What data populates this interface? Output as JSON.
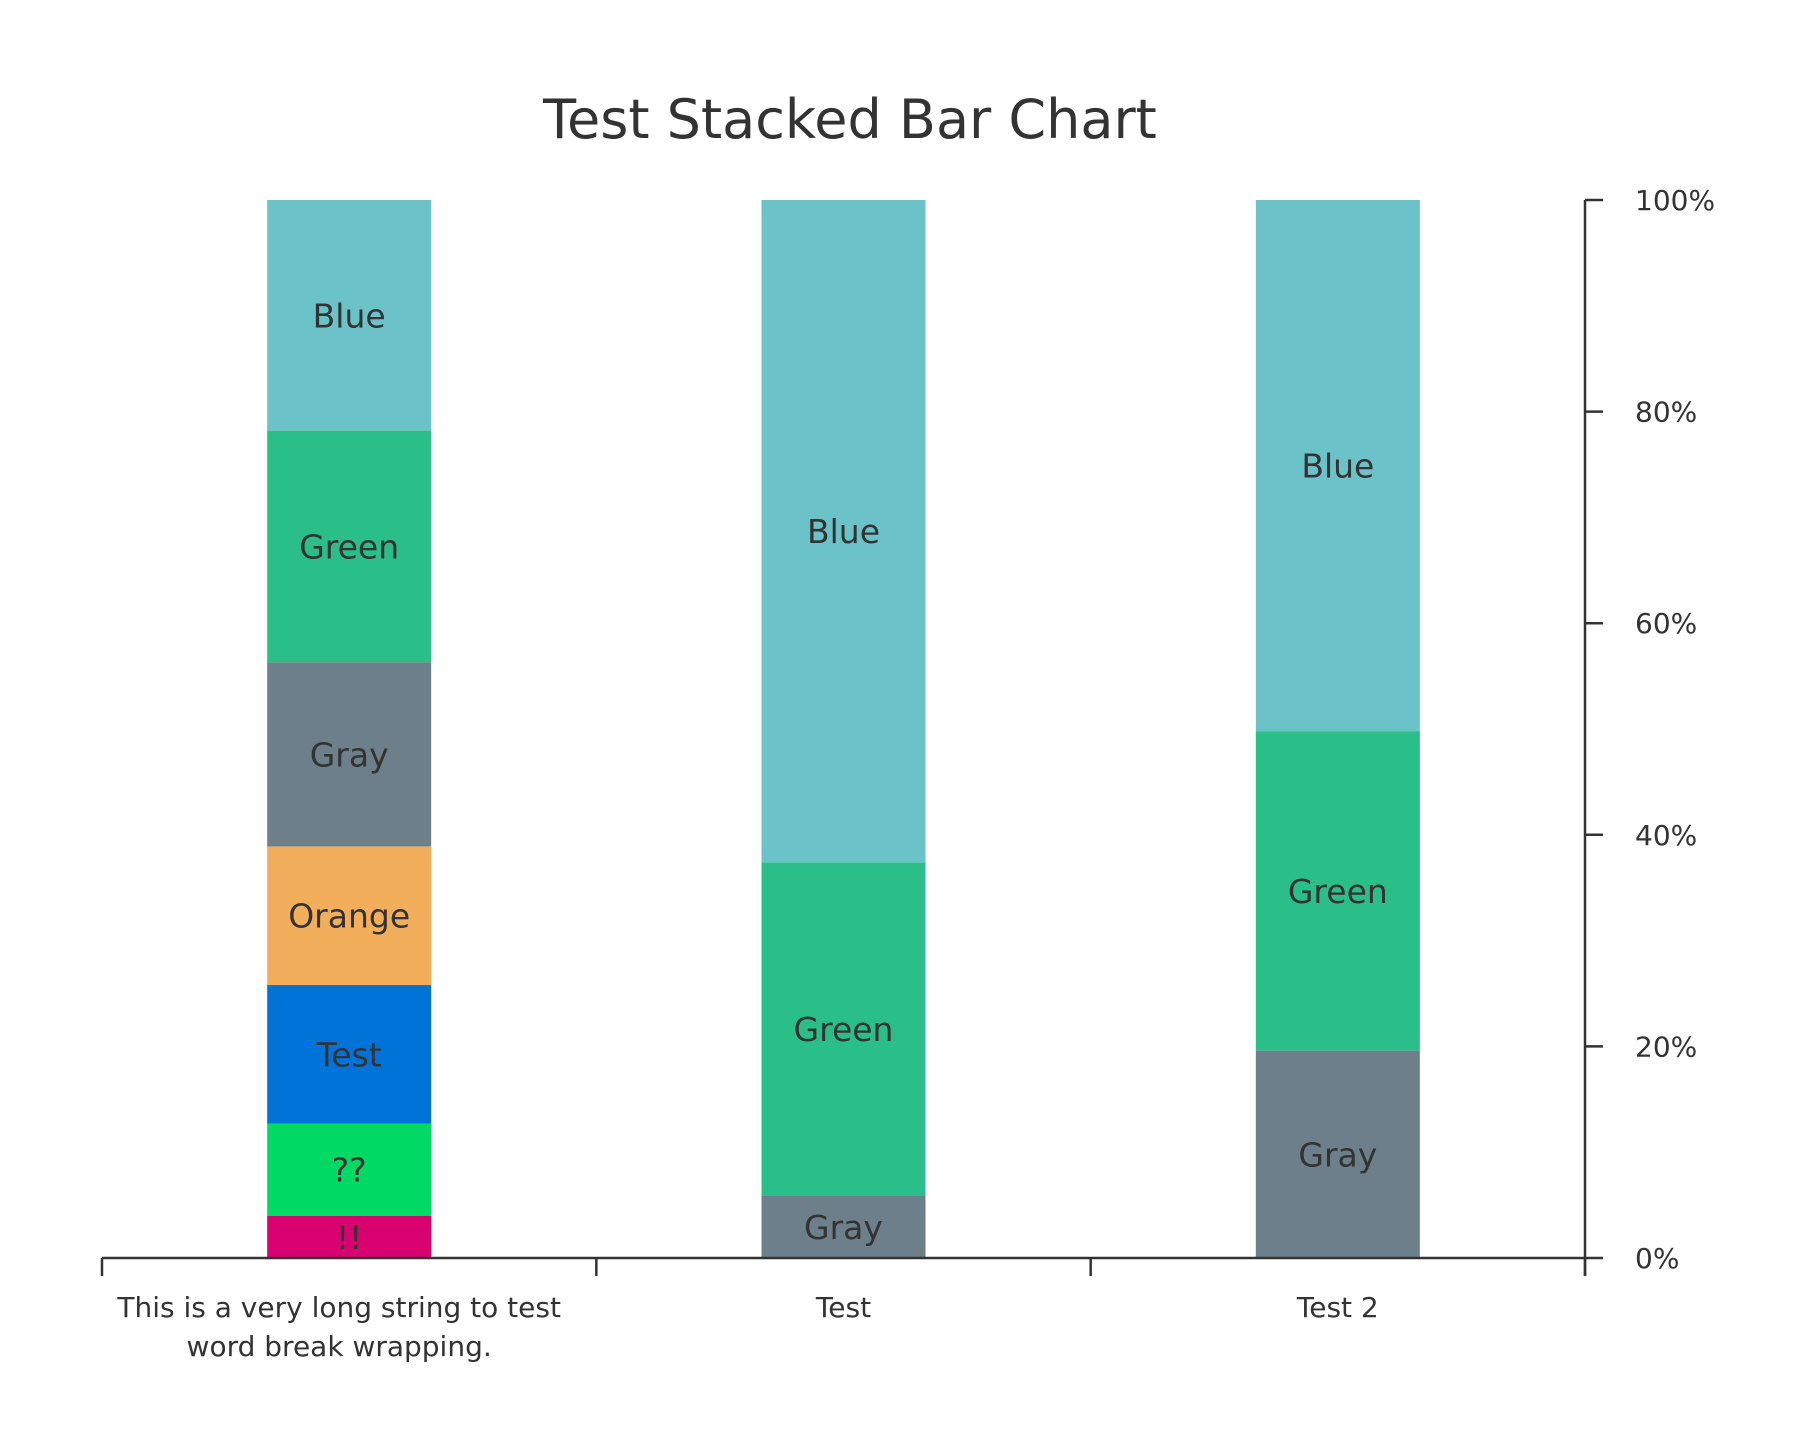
{
  "chart_data": {
    "type": "bar",
    "stacked": true,
    "normalized": true,
    "title": "Test Stacked Bar Chart",
    "xlabel": "",
    "ylabel": "",
    "ylim": [
      0,
      100
    ],
    "y_ticks": [
      "0%",
      "20%",
      "40%",
      "60%",
      "80%",
      "100%"
    ],
    "y_tick_values": [
      0,
      20,
      40,
      60,
      80,
      100
    ],
    "y_axis_side": "right",
    "grid": false,
    "legend": "none",
    "categories": [
      "This is a very long string to test word break wrapping.",
      "Test",
      "Test 2"
    ],
    "category_lines": [
      [
        "This is a very long string to test",
        "word break wrapping."
      ],
      [
        "Test"
      ],
      [
        "Test 2"
      ]
    ],
    "stacks": [
      {
        "category": "This is a very long string to test word break wrapping.",
        "segments": [
          {
            "label": "!!",
            "value": 4,
            "color": "#d9006f"
          },
          {
            "label": "??",
            "value": 8.7,
            "color": "#00d964"
          },
          {
            "label": "Test",
            "value": 13.1,
            "color": "#0073d9"
          },
          {
            "label": "Orange",
            "value": 13.1,
            "color": "#f2ae5a"
          },
          {
            "label": "Gray",
            "value": 17.4,
            "color": "#6d7f8a"
          },
          {
            "label": "Green",
            "value": 21.9,
            "color": "#2abf88"
          },
          {
            "label": "Blue",
            "value": 21.8,
            "color": "#6cc2c9"
          }
        ]
      },
      {
        "category": "Test",
        "segments": [
          {
            "label": "Gray",
            "value": 5.9,
            "color": "#6d7f8a"
          },
          {
            "label": "Green",
            "value": 31.5,
            "color": "#2abf88"
          },
          {
            "label": "Blue",
            "value": 62.6,
            "color": "#6cc2c9"
          }
        ]
      },
      {
        "category": "Test 2",
        "segments": [
          {
            "label": "Gray",
            "value": 19.6,
            "color": "#6d7f8a"
          },
          {
            "label": "Green",
            "value": 30.2,
            "color": "#2abf88"
          },
          {
            "label": "Blue",
            "value": 50.2,
            "color": "#6cc2c9"
          }
        ]
      }
    ],
    "colors": {
      "axis": "#333333",
      "text": "#333333"
    }
  }
}
